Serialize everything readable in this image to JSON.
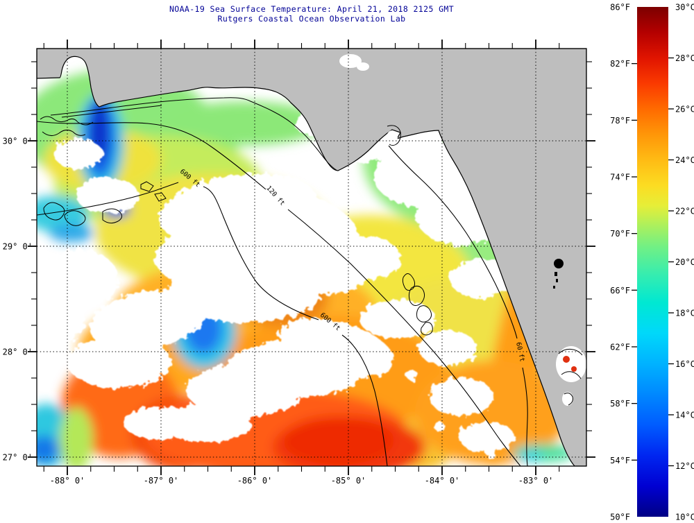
{
  "title": {
    "line1": "NOAA-19 Sea Surface Temperature:  April 21, 2018 2125 GMT",
    "line2": "Rutgers Coastal Ocean Observation Lab",
    "color": "#000096"
  },
  "map": {
    "land_color": "#BEBEBE",
    "sea_nodata_color": "#FFFFFF",
    "frame_color": "#000000",
    "lon_axis": {
      "labels": [
        {
          "value": -88,
          "label": "-88° 0'"
        },
        {
          "value": -87,
          "label": "-87° 0'"
        },
        {
          "value": -86,
          "label": "-86° 0'"
        },
        {
          "value": -85,
          "label": "-85° 0'"
        },
        {
          "value": -84,
          "label": "-84° 0'"
        },
        {
          "value": -83,
          "label": "-83° 0'"
        }
      ],
      "minor_step_deg": 0.25,
      "range": [
        -88.33,
        -82.46
      ]
    },
    "lat_axis": {
      "labels": [
        {
          "value": 30,
          "label": "30° 0'"
        },
        {
          "value": 29,
          "label": "29° 0'"
        },
        {
          "value": 28,
          "label": "28° 0'"
        },
        {
          "value": 27,
          "label": "27° 0'"
        }
      ],
      "minor_step_deg": 0.25,
      "range": [
        26.91,
        30.87
      ]
    },
    "contour_labels": [
      {
        "text": "600 ft"
      },
      {
        "text": "120 ft"
      },
      {
        "text": "600 ft"
      },
      {
        "text": "60 ft"
      }
    ]
  },
  "colorbar": {
    "f_range": [
      50,
      86
    ],
    "c_range": [
      10,
      30
    ],
    "f_labels": [
      {
        "value": 86,
        "label": "86°F"
      },
      {
        "value": 82,
        "label": "82°F"
      },
      {
        "value": 78,
        "label": "78°F"
      },
      {
        "value": 74,
        "label": "74°F"
      },
      {
        "value": 70,
        "label": "70°F"
      },
      {
        "value": 66,
        "label": "66°F"
      },
      {
        "value": 62,
        "label": "62°F"
      },
      {
        "value": 58,
        "label": "58°F"
      },
      {
        "value": 54,
        "label": "54°F"
      },
      {
        "value": 50,
        "label": "50°F"
      }
    ],
    "c_labels": [
      {
        "value": 30,
        "label": "30°C"
      },
      {
        "value": 28,
        "label": "28°C"
      },
      {
        "value": 26,
        "label": "26°C"
      },
      {
        "value": 24,
        "label": "24°C"
      },
      {
        "value": 22,
        "label": "22°C"
      },
      {
        "value": 20,
        "label": "20°C"
      },
      {
        "value": 18,
        "label": "18°C"
      },
      {
        "value": 16,
        "label": "16°C"
      },
      {
        "value": 14,
        "label": "14°C"
      },
      {
        "value": 12,
        "label": "12°C"
      },
      {
        "value": 10,
        "label": "10°C"
      }
    ],
    "gradient": [
      {
        "t": 0.0,
        "color": "#000084"
      },
      {
        "t": 0.06,
        "color": "#0000D2"
      },
      {
        "t": 0.12,
        "color": "#0026F0"
      },
      {
        "t": 0.18,
        "color": "#005CFF"
      },
      {
        "t": 0.24,
        "color": "#0088FF"
      },
      {
        "t": 0.3,
        "color": "#00B2FF"
      },
      {
        "t": 0.36,
        "color": "#00D8FA"
      },
      {
        "t": 0.42,
        "color": "#00E8D2"
      },
      {
        "t": 0.48,
        "color": "#3BEDAC"
      },
      {
        "t": 0.53,
        "color": "#72F084"
      },
      {
        "t": 0.57,
        "color": "#AAF05E"
      },
      {
        "t": 0.61,
        "color": "#E6EE38"
      },
      {
        "t": 0.65,
        "color": "#FCDC22"
      },
      {
        "t": 0.7,
        "color": "#FFBB14"
      },
      {
        "t": 0.75,
        "color": "#FF9608"
      },
      {
        "t": 0.8,
        "color": "#FF6A00"
      },
      {
        "t": 0.85,
        "color": "#FA3A00"
      },
      {
        "t": 0.9,
        "color": "#E01400"
      },
      {
        "t": 0.95,
        "color": "#B40000"
      },
      {
        "t": 1.0,
        "color": "#7C0000"
      }
    ]
  }
}
